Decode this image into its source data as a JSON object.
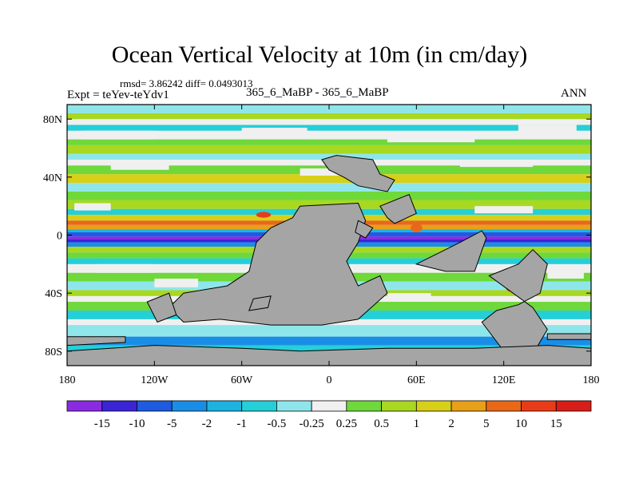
{
  "title": "Ocean Vertical Velocity at 10m (in cm/day)",
  "stats": "rmsd= 3.86242 diff= 0.0493013",
  "expt": "Expt = teYev-teYdv1",
  "center_label": "365_6_MaBP - 365_6_MaBP",
  "season": "ANN",
  "lat_ticks": [
    "80N",
    "40N",
    "0",
    "40S",
    "80S"
  ],
  "lon_ticks": [
    "180",
    "120W",
    "60W",
    "0",
    "60E",
    "120E",
    "180"
  ],
  "colorbar": {
    "labels": [
      "-15",
      "-10",
      "-5",
      "-2",
      "-1",
      "-0.5",
      "-0.25",
      "0.25",
      "0.5",
      "1",
      "2",
      "5",
      "10",
      "15"
    ],
    "colors": [
      "#8a2be2",
      "#3a24d6",
      "#1f5be0",
      "#1a8ee6",
      "#1db3e0",
      "#25cfd8",
      "#8fe6ea",
      "#f0f0f0",
      "#6fd83a",
      "#a8d820",
      "#d8cf18",
      "#e8a018",
      "#e86818",
      "#e83c18",
      "#d81e18"
    ]
  },
  "land_color": "#a5a5a5",
  "chart_data": {
    "type": "heatmap",
    "title": "Ocean Vertical Velocity at 10m (in cm/day)",
    "variable": "Ocean vertical velocity at 10m",
    "units": "cm/day",
    "x_range": [
      -180,
      180
    ],
    "y_range": [
      -90,
      90
    ],
    "levels": [
      -15,
      -10,
      -5,
      -2,
      -1,
      -0.5,
      -0.25,
      0.25,
      0.5,
      1,
      2,
      5,
      10,
      15
    ],
    "features": [
      "strong negative band (-15 to -5) along the equator in the Pacific",
      "positive upwelling bands just north and south of the equator",
      "alternating weak positive and negative zonal bands at high latitudes"
    ]
  }
}
